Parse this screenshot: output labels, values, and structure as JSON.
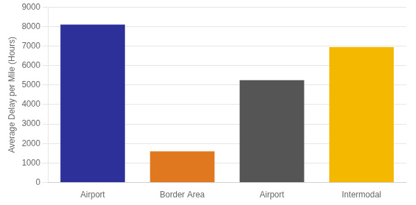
{
  "chart_data": {
    "type": "bar",
    "categories": [
      "Airport",
      "Border Area",
      "Airport",
      "Intermodal"
    ],
    "values": [
      8100,
      1600,
      5250,
      6950
    ],
    "colors": [
      "#2d3099",
      "#e07820",
      "#555555",
      "#f5b800"
    ],
    "ylabel": "Average Delay per Mile (Hours)",
    "ylim": [
      0,
      9000
    ],
    "yticks": [
      0,
      1000,
      2000,
      3000,
      4000,
      5000,
      6000,
      7000,
      8000,
      9000
    ],
    "grid": true
  }
}
